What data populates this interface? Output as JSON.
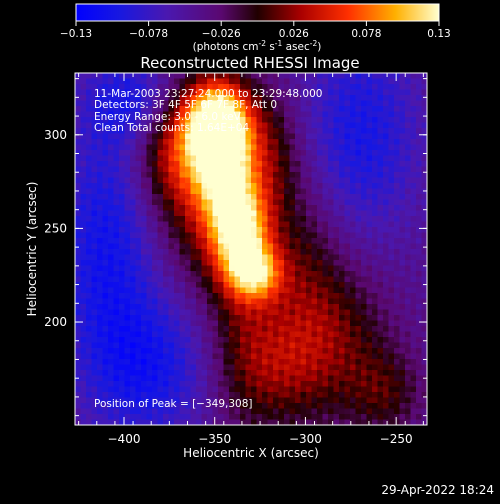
{
  "chart_data": {
    "type": "heatmap",
    "title": "Reconstructed RHESSI Image",
    "colorbar": {
      "label_parts": [
        "(photons cm",
        "-2",
        " s",
        "-1",
        " asec",
        "-2",
        ")"
      ],
      "range": [
        -0.13,
        0.13
      ],
      "ticks": [
        {
          "value": -0.13,
          "label": "−0.13"
        },
        {
          "value": -0.078,
          "label": "−0.078"
        },
        {
          "value": -0.026,
          "label": "−0.026"
        },
        {
          "value": 0.026,
          "label": "0.026"
        },
        {
          "value": 0.078,
          "label": "0.078"
        },
        {
          "value": 0.13,
          "label": "0.13"
        }
      ]
    },
    "xlabel": "Heliocentric X (arcsec)",
    "ylabel": "Heliocentric Y (arcsec)",
    "xlim": [
      -427,
      -233
    ],
    "ylim": [
      145,
      333
    ],
    "xticks": [
      {
        "value": -400,
        "label": "−400"
      },
      {
        "value": -350,
        "label": "−350"
      },
      {
        "value": -300,
        "label": "−300"
      },
      {
        "value": -250,
        "label": "−250"
      }
    ],
    "yticks": [
      {
        "value": 200,
        "label": "200"
      },
      {
        "value": 250,
        "label": "250"
      },
      {
        "value": 300,
        "label": "300"
      }
    ],
    "annotations": [
      "11-Mar-2003 23:27:24.000 to 23:29:48.000",
      "Detectors: 3F 4F 5F 6F 7F 8F, Att 0",
      "Energy Range: 3.0 - 6.0 keV",
      "Clean     Total counts: 1.64E+04"
    ],
    "peak_label": "Position of Peak = [−349,308]",
    "peak": [
      -349,
      308
    ],
    "sources": [
      {
        "x": -349,
        "y": 308,
        "sx": 13,
        "sy": 16,
        "amp": 0.16
      },
      {
        "x": -345,
        "y": 285,
        "sx": 11,
        "sy": 20,
        "amp": 0.12
      },
      {
        "x": -336,
        "y": 248,
        "sx": 11,
        "sy": 18,
        "amp": 0.135
      },
      {
        "x": -327,
        "y": 226,
        "sx": 10,
        "sy": 10,
        "amp": 0.1
      },
      {
        "x": -372,
        "y": 292,
        "sx": 15,
        "sy": 22,
        "amp": 0.075
      },
      {
        "x": -320,
        "y": 290,
        "sx": 12,
        "sy": 24,
        "amp": 0.05
      },
      {
        "x": -355,
        "y": 262,
        "sx": 18,
        "sy": 30,
        "amp": 0.06
      },
      {
        "x": -302,
        "y": 228,
        "sx": 16,
        "sy": 40,
        "amp": 0.045
      },
      {
        "x": -280,
        "y": 190,
        "sx": 20,
        "sy": 30,
        "amp": 0.05
      },
      {
        "x": -315,
        "y": 175,
        "sx": 18,
        "sy": 22,
        "amp": 0.045
      },
      {
        "x": -335,
        "y": 200,
        "sx": 14,
        "sy": 40,
        "amp": 0.045
      },
      {
        "x": -255,
        "y": 162,
        "sx": 14,
        "sy": 16,
        "amp": 0.04
      },
      {
        "x": -395,
        "y": 318,
        "sx": 18,
        "sy": 16,
        "amp": -0.05
      },
      {
        "x": -410,
        "y": 240,
        "sx": 20,
        "sy": 50,
        "amp": -0.06
      },
      {
        "x": -385,
        "y": 175,
        "sx": 24,
        "sy": 28,
        "amp": -0.055
      },
      {
        "x": -270,
        "y": 300,
        "sx": 24,
        "sy": 40,
        "amp": -0.055
      }
    ],
    "background": -0.045
  },
  "footer": {
    "timestamp": "29-Apr-2022 18:24"
  },
  "colors": {
    "background": "#000000",
    "text": "#ffffff"
  }
}
